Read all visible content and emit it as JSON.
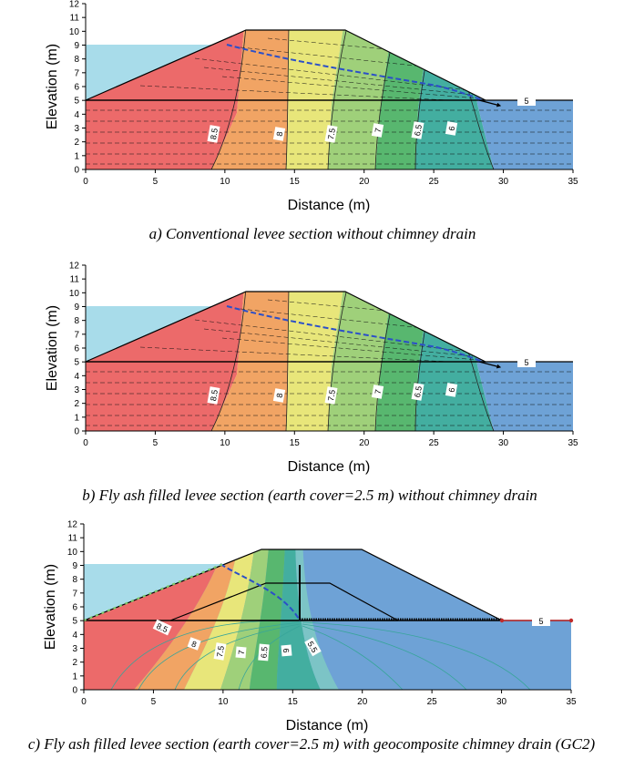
{
  "axis": {
    "xlabel": "Distance (m)",
    "ylabel": "Elevation (m)",
    "x_ticks": [
      "0",
      "5",
      "10",
      "15",
      "20",
      "25",
      "30",
      "35"
    ],
    "y_ticks": [
      "0",
      "1",
      "2",
      "3",
      "4",
      "5",
      "6",
      "7",
      "8",
      "9",
      "10",
      "11",
      "12"
    ],
    "xlim": [
      0,
      35
    ],
    "ylim": [
      0,
      12
    ]
  },
  "colors": {
    "water": "#a8dcea",
    "bands": [
      "#ec6a6a",
      "#f1a464",
      "#e8e67a",
      "#9fd07a",
      "#58b76f",
      "#43aea0",
      "#6ea2d6"
    ]
  },
  "panels": [
    {
      "caption": "a) Conventional levee section without chimney drain",
      "contours": [
        "8.5",
        "8",
        "7.5",
        "7",
        "6.5",
        "6",
        "5"
      ]
    },
    {
      "caption": "b) Fly ash filled levee section (earth cover=2.5 m) without chimney drain",
      "contours": [
        "8.5",
        "8",
        "7.5",
        "7",
        "6.5",
        "6",
        "5"
      ]
    },
    {
      "caption": "c) Fly ash filled levee section (earth cover=2.5 m) with geocomposite chimney drain (GC2)",
      "contours": [
        "8.5",
        "8",
        "7.5",
        "7",
        "6.5",
        "6",
        "5.5",
        "5"
      ]
    }
  ]
}
